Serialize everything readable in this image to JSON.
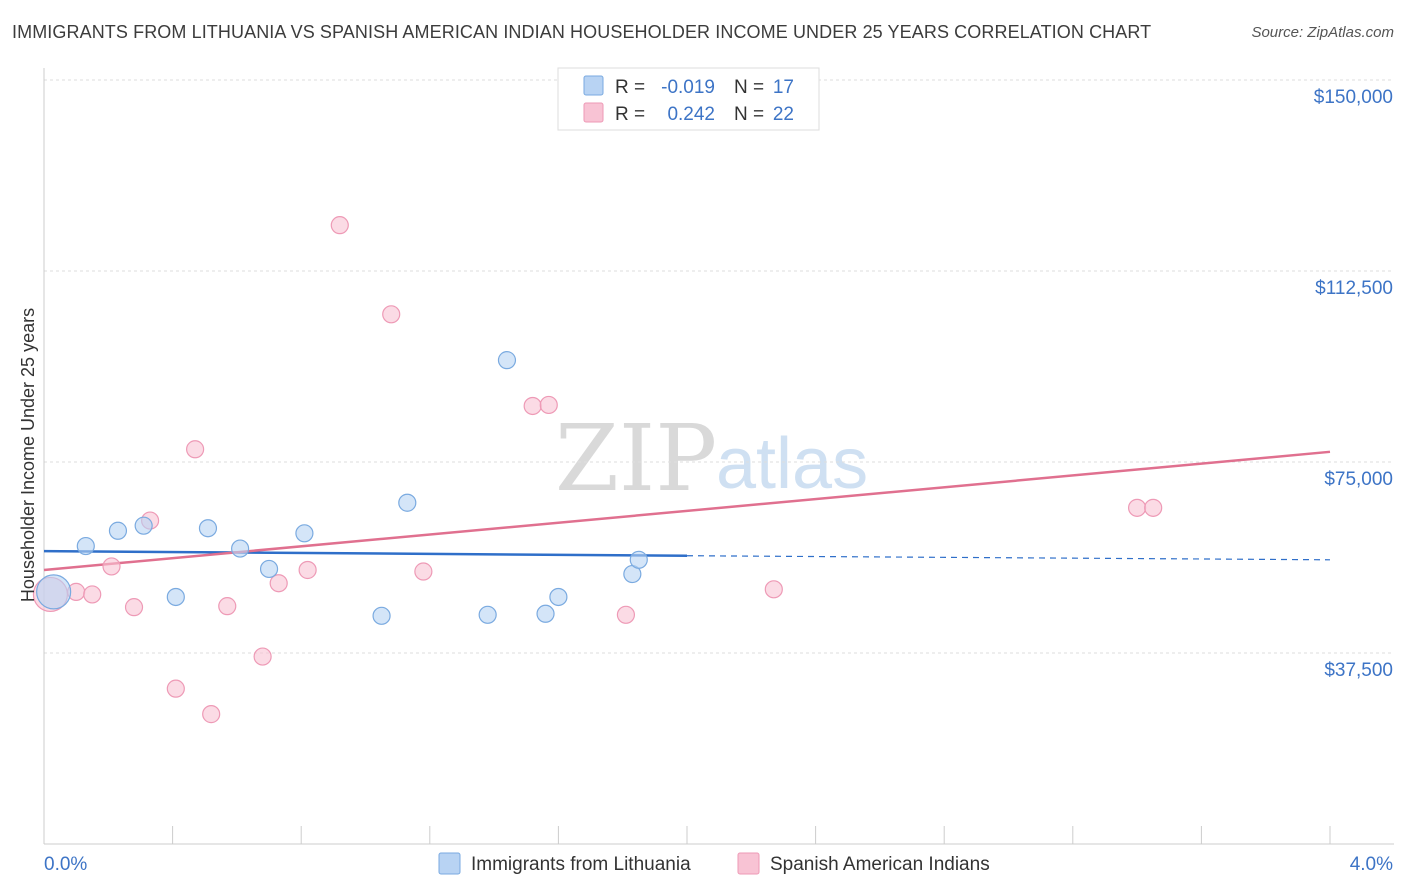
{
  "title": "IMMIGRANTS FROM LITHUANIA VS SPANISH AMERICAN INDIAN HOUSEHOLDER INCOME UNDER 25 YEARS CORRELATION CHART",
  "source": "Source: ZipAtlas.com",
  "watermark": {
    "zip": "ZIP",
    "atlas": "atlas"
  },
  "legend": {
    "r_label": "R =",
    "n_label": "N =",
    "rows": [
      {
        "r": "-0.019",
        "n": "17"
      },
      {
        "r": "0.242",
        "n": "22"
      }
    ]
  },
  "colors": {
    "blue_fill": "#b8d3f3",
    "blue_stroke": "#7aaae0",
    "blue_line": "#2f6fc9",
    "pink_fill": "#f8c3d4",
    "pink_stroke": "#ee9ab6",
    "pink_line": "#e0708f"
  },
  "chart_data": {
    "type": "scatter",
    "xlabel": "",
    "ylabel": "Householder Income Under 25 years",
    "xlim": [
      0.0,
      4.0
    ],
    "ylim": [
      0,
      150000
    ],
    "x_tick_labels": [
      "0.0%",
      "4.0%"
    ],
    "y_ticks": [
      37500,
      75000,
      112500,
      150000
    ],
    "y_tick_labels": [
      "$37,500",
      "$75,000",
      "$112,500",
      "$150,000"
    ],
    "series": [
      {
        "name": "Immigrants from Lithuania",
        "color": "#b8d3f3",
        "r": -0.019,
        "n": 17,
        "trend": {
          "x0": 0.0,
          "y0": 57500,
          "x1": 2.0,
          "y1": 56600,
          "dash_to": 4.0,
          "dash_y": 55800
        },
        "points": [
          {
            "x": 0.03,
            "y": 49500,
            "size": "large"
          },
          {
            "x": 0.13,
            "y": 58500
          },
          {
            "x": 0.23,
            "y": 61500
          },
          {
            "x": 0.31,
            "y": 62500
          },
          {
            "x": 0.41,
            "y": 48500
          },
          {
            "x": 0.51,
            "y": 62000
          },
          {
            "x": 0.61,
            "y": 58000
          },
          {
            "x": 0.7,
            "y": 54000
          },
          {
            "x": 0.81,
            "y": 61000
          },
          {
            "x": 1.05,
            "y": 44800
          },
          {
            "x": 1.13,
            "y": 67000
          },
          {
            "x": 1.38,
            "y": 45000
          },
          {
            "x": 1.44,
            "y": 95000
          },
          {
            "x": 1.56,
            "y": 45200
          },
          {
            "x": 1.6,
            "y": 48500
          },
          {
            "x": 1.83,
            "y": 53000
          },
          {
            "x": 1.85,
            "y": 55800
          }
        ]
      },
      {
        "name": "Spanish American Indians",
        "color": "#f8c3d4",
        "r": 0.242,
        "n": 22,
        "trend": {
          "x0": 0.0,
          "y0": 53800,
          "x1": 4.0,
          "y1": 77000
        },
        "points": [
          {
            "x": 0.02,
            "y": 49000,
            "size": "large"
          },
          {
            "x": 0.1,
            "y": 49500
          },
          {
            "x": 0.15,
            "y": 49000
          },
          {
            "x": 0.21,
            "y": 54500
          },
          {
            "x": 0.28,
            "y": 46500
          },
          {
            "x": 0.33,
            "y": 63500
          },
          {
            "x": 0.41,
            "y": 30500
          },
          {
            "x": 0.47,
            "y": 77500
          },
          {
            "x": 0.52,
            "y": 25500
          },
          {
            "x": 0.57,
            "y": 46700
          },
          {
            "x": 0.68,
            "y": 36800
          },
          {
            "x": 0.73,
            "y": 51200
          },
          {
            "x": 0.82,
            "y": 53800
          },
          {
            "x": 0.92,
            "y": 121500
          },
          {
            "x": 1.08,
            "y": 104000
          },
          {
            "x": 1.18,
            "y": 53500
          },
          {
            "x": 1.52,
            "y": 86000
          },
          {
            "x": 1.57,
            "y": 86200
          },
          {
            "x": 1.81,
            "y": 45000
          },
          {
            "x": 2.27,
            "y": 50000
          },
          {
            "x": 3.4,
            "y": 66000
          },
          {
            "x": 3.45,
            "y": 66000
          }
        ]
      }
    ]
  }
}
